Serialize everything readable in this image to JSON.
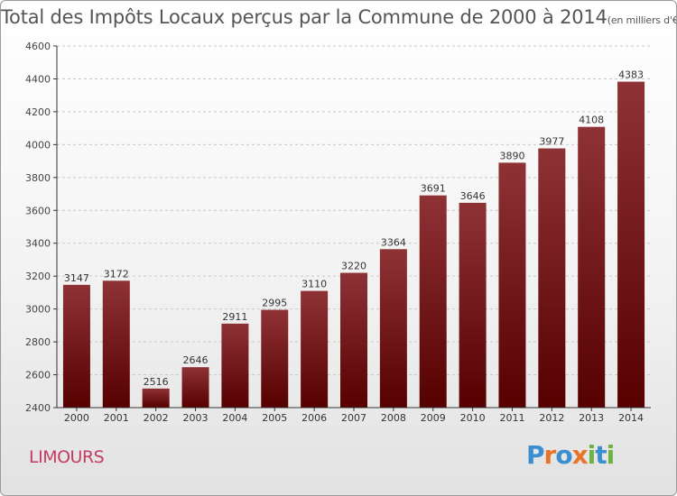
{
  "title": {
    "main": "Total des Impôts Locaux perçus par la Commune de 2000 à 2014",
    "unit": "(en milliers d'€)"
  },
  "commune": "LIMOURS",
  "logo": {
    "letters": [
      "P",
      "r",
      "o",
      "x",
      "i",
      "t",
      "i"
    ],
    "colors": [
      "#3b8fd1",
      "#e8742a",
      "#3b8fd1",
      "#e8742a",
      "#6db33f",
      "#3b8fd1",
      "#6db33f"
    ]
  },
  "chart_data": {
    "type": "bar",
    "title": "Total des Impôts Locaux perçus par la Commune de 2000 à 2014",
    "xlabel": "",
    "ylabel": "",
    "categories": [
      "2000",
      "2001",
      "2002",
      "2003",
      "2004",
      "2005",
      "2006",
      "2007",
      "2008",
      "2009",
      "2010",
      "2011",
      "2012",
      "2013",
      "2014"
    ],
    "values": [
      3147,
      3172,
      2516,
      2646,
      2911,
      2995,
      3110,
      3220,
      3364,
      3691,
      3646,
      3890,
      3977,
      4108,
      4383
    ],
    "ylim": [
      2400,
      4600
    ],
    "yticks": [
      2400,
      2600,
      2800,
      3000,
      3200,
      3400,
      3600,
      3800,
      4000,
      4200,
      4400,
      4600
    ],
    "grid": true,
    "bar_color": "#7a1a1c"
  }
}
